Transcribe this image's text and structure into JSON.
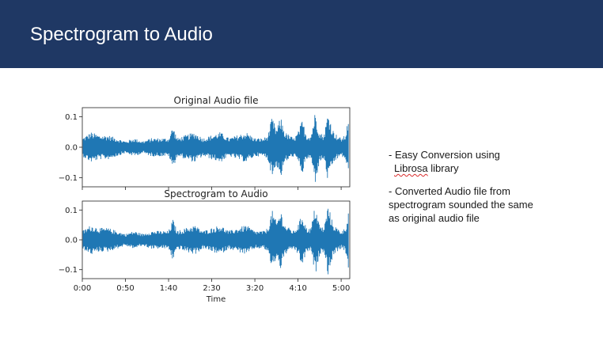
{
  "slide": {
    "title": "Spectrogram to Audio",
    "header_color": "#1f3864"
  },
  "bullets": {
    "b1_line1": "- Easy Conversion using",
    "b1_line2_word": "Librosa",
    "b1_line2_rest": " library",
    "b2_line1": "- Converted Audio file from",
    "b2_line2": "spectrogram sounded the same",
    "b2_line3": "as original audio file"
  },
  "chart_data": [
    {
      "type": "line",
      "title": "Original Audio file",
      "xlabel": "",
      "ylabel": "",
      "ylim": [
        -0.13,
        0.13
      ],
      "yticks": [
        0.1,
        0.0,
        -0.1
      ],
      "ytick_labels": [
        "0.1",
        "0.0",
        "−0.1"
      ],
      "xlim": [
        0,
        310
      ],
      "x_units": "seconds",
      "color": "#1f77b4",
      "series": [
        {
          "envelope_t": [
            0,
            10,
            20,
            30,
            40,
            50,
            60,
            70,
            80,
            90,
            100,
            105,
            110,
            120,
            130,
            140,
            150,
            160,
            170,
            180,
            190,
            200,
            210,
            215,
            220,
            225,
            230,
            235,
            240,
            245,
            250,
            255,
            260,
            265,
            270,
            275,
            280,
            285,
            290,
            295,
            300,
            305,
            310
          ],
          "envelope_amp": [
            0.03,
            0.05,
            0.04,
            0.04,
            0.03,
            0.02,
            0.03,
            0.02,
            0.03,
            0.03,
            0.03,
            0.07,
            0.03,
            0.04,
            0.05,
            0.03,
            0.04,
            0.05,
            0.03,
            0.04,
            0.05,
            0.03,
            0.03,
            0.04,
            0.1,
            0.06,
            0.1,
            0.05,
            0.04,
            0.03,
            0.05,
            0.09,
            0.04,
            0.04,
            0.12,
            0.05,
            0.04,
            0.12,
            0.06,
            0.04,
            0.03,
            0.04,
            0.13
          ]
        }
      ]
    },
    {
      "type": "line",
      "title": "Spectrogram to Audio",
      "xlabel": "Time",
      "ylabel": "",
      "ylim": [
        -0.13,
        0.13
      ],
      "yticks": [
        0.1,
        0.0,
        -0.1
      ],
      "ytick_labels": [
        "0.1",
        "0.0",
        "−0.1"
      ],
      "xlim": [
        0,
        310
      ],
      "x_units": "seconds",
      "xticks": [
        0,
        50,
        100,
        150,
        200,
        250,
        300
      ],
      "xtick_labels": [
        "0:00",
        "0:50",
        "1:40",
        "2:30",
        "3:20",
        "4:10",
        "5:00"
      ],
      "color": "#1f77b4",
      "series": [
        {
          "envelope_t": [
            0,
            10,
            20,
            30,
            40,
            50,
            60,
            70,
            80,
            90,
            100,
            105,
            110,
            120,
            130,
            140,
            150,
            160,
            170,
            180,
            190,
            200,
            210,
            215,
            220,
            225,
            230,
            235,
            240,
            245,
            250,
            255,
            260,
            265,
            270,
            275,
            280,
            285,
            290,
            295,
            300,
            305,
            310
          ],
          "envelope_amp": [
            0.03,
            0.05,
            0.04,
            0.04,
            0.03,
            0.02,
            0.03,
            0.02,
            0.03,
            0.03,
            0.03,
            0.07,
            0.03,
            0.04,
            0.05,
            0.03,
            0.04,
            0.05,
            0.03,
            0.04,
            0.05,
            0.03,
            0.03,
            0.04,
            0.1,
            0.06,
            0.1,
            0.05,
            0.04,
            0.03,
            0.05,
            0.09,
            0.04,
            0.04,
            0.12,
            0.05,
            0.04,
            0.12,
            0.06,
            0.04,
            0.03,
            0.04,
            0.13
          ]
        }
      ]
    }
  ]
}
